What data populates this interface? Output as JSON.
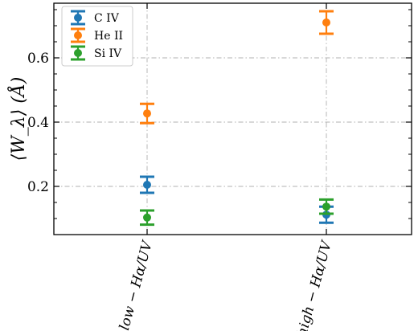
{
  "chart_data": {
    "type": "scatter",
    "title": "",
    "xlabel": "",
    "ylabel": "⟨W_λ⟩ (Å)",
    "categories": [
      "low − Hα/UV",
      "high − Hα/UV"
    ],
    "ylim": [
      0.05,
      0.77
    ],
    "yticks": [
      "0.2",
      "0.4",
      "0.6"
    ],
    "grid": true,
    "legend_position": "top-left",
    "series": [
      {
        "name": "C IV",
        "color": "#1f77b4",
        "values": [
          0.205,
          0.112
        ],
        "errors": [
          0.025,
          0.025
        ]
      },
      {
        "name": "He II",
        "color": "#ff7f0e",
        "values": [
          0.427,
          0.71
        ],
        "errors": [
          0.03,
          0.035
        ]
      },
      {
        "name": "Si IV",
        "color": "#2ca02c",
        "values": [
          0.103,
          0.137
        ],
        "errors": [
          0.022,
          0.022
        ]
      }
    ]
  }
}
